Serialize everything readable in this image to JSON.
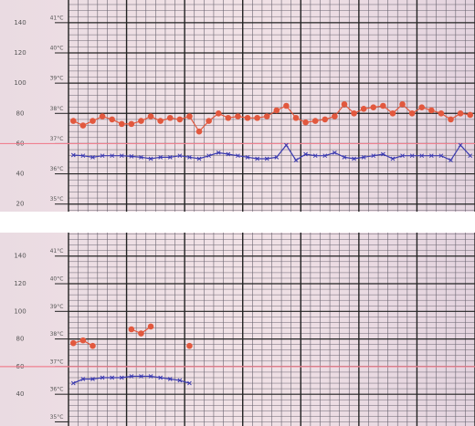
{
  "chart_data": [
    {
      "type": "line",
      "categories": [
        null,
        null,
        null,
        null,
        null,
        null,
        null,
        null,
        null,
        null,
        null,
        null,
        null,
        null,
        null,
        null,
        null,
        null,
        null,
        null,
        null,
        null,
        null,
        null,
        null,
        null,
        null,
        null,
        null,
        null,
        null,
        null,
        null,
        null,
        null,
        null,
        null,
        null,
        null,
        null,
        null,
        null
      ],
      "ylim": [
        15,
        155
      ],
      "yticks": [
        20,
        40,
        60,
        80,
        100,
        120,
        140
      ],
      "y2lim": [
        34.75,
        41.75
      ],
      "y2ticks": [
        {
          "value": 35,
          "label": "35°C"
        },
        {
          "value": 36,
          "label": "36°C"
        },
        {
          "value": 37,
          "label": "37°C"
        },
        {
          "value": 38,
          "label": "38°C"
        },
        {
          "value": 39,
          "label": "39°C"
        },
        {
          "value": 40,
          "label": "40°C"
        },
        {
          "value": 41,
          "label": "41°C"
        }
      ],
      "threshold": 37,
      "threshold_color": "#f08090",
      "grid": true,
      "series": [
        {
          "color": "#e2583e",
          "marker": "dot",
          "values": [
            75,
            72,
            75,
            78,
            76,
            73,
            73,
            75,
            78,
            75,
            77,
            76,
            78,
            68,
            75,
            80,
            77,
            78,
            77,
            77,
            78,
            82,
            85,
            77,
            74,
            75,
            76,
            78,
            86,
            80,
            83,
            84,
            85,
            80,
            86,
            80,
            84,
            82,
            80,
            76,
            80,
            79
          ]
        },
        {
          "color": "#3a3ab0",
          "marker": "cross",
          "axis": "y2",
          "values": [
            36.62,
            36.6,
            36.55,
            36.6,
            36.6,
            36.6,
            36.58,
            36.55,
            36.5,
            36.55,
            36.55,
            36.6,
            36.55,
            36.5,
            36.6,
            36.7,
            36.65,
            36.6,
            36.55,
            36.5,
            36.5,
            36.55,
            36.95,
            36.45,
            36.65,
            36.6,
            36.6,
            36.7,
            36.55,
            36.5,
            36.55,
            36.6,
            36.65,
            36.5,
            36.6,
            36.6,
            36.6,
            36.6,
            36.6,
            36.45,
            36.95,
            36.6
          ]
        }
      ]
    },
    {
      "type": "line",
      "categories": [
        null,
        null,
        null,
        null,
        null,
        null,
        null,
        null,
        null,
        null,
        null,
        null,
        null,
        null,
        null,
        null,
        null,
        null,
        null,
        null,
        null,
        null,
        null,
        null,
        null,
        null,
        null,
        null,
        null,
        null,
        null,
        null,
        null,
        null,
        null,
        null,
        null,
        null,
        null,
        null,
        null,
        null
      ],
      "ylim": [
        17,
        157
      ],
      "yticks": [
        40,
        60,
        80,
        100,
        120,
        140
      ],
      "y2lim": [
        34.85,
        41.85
      ],
      "y2ticks": [
        {
          "value": 35,
          "label": "35°C"
        },
        {
          "value": 36,
          "label": "36°C"
        },
        {
          "value": 37,
          "label": "37°C"
        },
        {
          "value": 38,
          "label": "38°C"
        },
        {
          "value": 39,
          "label": "39°C"
        },
        {
          "value": 40,
          "label": "40°C"
        },
        {
          "value": 41,
          "label": "41°C"
        }
      ],
      "threshold": 37,
      "threshold_color": "#f08090",
      "grid": true,
      "series": [
        {
          "color": "#e2583e",
          "marker": "dot",
          "values": [
            77,
            79,
            75,
            null,
            null,
            null,
            87,
            84,
            89,
            null,
            null,
            null,
            75,
            null,
            null,
            null,
            null,
            null,
            null,
            null,
            null,
            null,
            null,
            null,
            null,
            null,
            null,
            null,
            null,
            null,
            null,
            null,
            null,
            null,
            null,
            null,
            null,
            null,
            null,
            null,
            null,
            null
          ]
        },
        {
          "color": "#3a3ab0",
          "marker": "cross",
          "axis": "y2",
          "values": [
            36.4,
            36.55,
            36.55,
            36.6,
            36.6,
            36.6,
            36.65,
            36.65,
            36.65,
            36.6,
            36.55,
            36.5,
            36.4,
            null,
            null,
            null,
            null,
            null,
            null,
            null,
            null,
            null,
            null,
            null,
            null,
            null,
            null,
            null,
            null,
            null,
            null,
            null,
            null,
            null,
            null,
            null,
            null,
            null,
            null,
            null,
            null,
            null
          ]
        }
      ]
    }
  ]
}
